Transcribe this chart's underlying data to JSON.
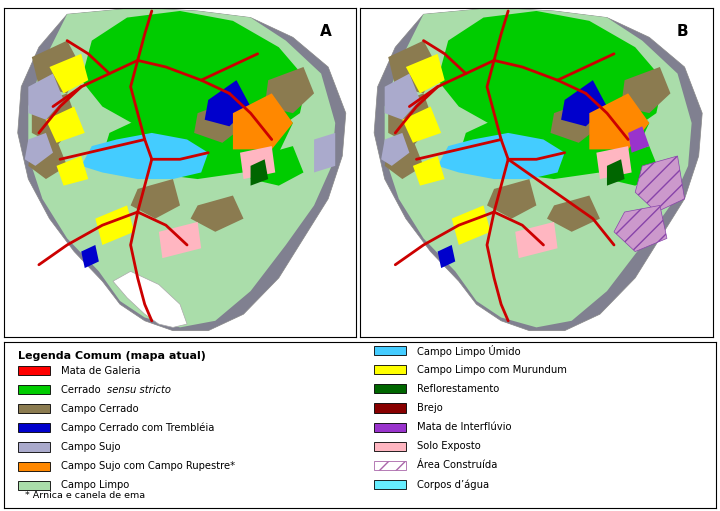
{
  "legend_title": "Legenda Comum (mapa atual)",
  "legend_left": [
    {
      "color": "#FF0000",
      "label": "Mata de Galeria",
      "italic_prefix": "",
      "italic_text": ""
    },
    {
      "color": "#00CC00",
      "label": "Cerrado ",
      "italic_prefix": "Cerrado ",
      "italic_text": "sensu stricto"
    },
    {
      "color": "#8B7B50",
      "label": "Campo Cerrado",
      "italic_prefix": "",
      "italic_text": ""
    },
    {
      "color": "#0000CC",
      "label": "Campo Cerrado com Trembléia",
      "italic_prefix": "",
      "italic_text": ""
    },
    {
      "color": "#AAAACC",
      "label": "Campo Sujo",
      "italic_prefix": "",
      "italic_text": ""
    },
    {
      "color": "#FF8800",
      "label": "Campo Sujo com Campo Rupestre*",
      "italic_prefix": "",
      "italic_text": ""
    },
    {
      "color": "#AADDAA",
      "label": "Campo Limpo",
      "italic_prefix": "",
      "italic_text": ""
    }
  ],
  "legend_right": [
    {
      "color": "#44CCFF",
      "label": "Campo Limpo Úmido",
      "hatch": ""
    },
    {
      "color": "#FFFF00",
      "label": "Campo Limpo com Murundum",
      "hatch": ""
    },
    {
      "color": "#006600",
      "label": "Reflorestamento",
      "hatch": ""
    },
    {
      "color": "#880000",
      "label": "Brejo",
      "hatch": ""
    },
    {
      "color": "#9933CC",
      "label": "Mata de Interflúvio",
      "hatch": ""
    },
    {
      "color": "#FFB6C1",
      "label": "Solo Exposto",
      "hatch": ""
    },
    {
      "color": "#CC88CC",
      "label": "Área Construída",
      "hatch": "//"
    },
    {
      "color": "#66EEFF",
      "label": "Corpos d’água",
      "hatch": ""
    }
  ],
  "footnote": "* Arnica e canela de ema",
  "bg_color": "#FFFFFF"
}
